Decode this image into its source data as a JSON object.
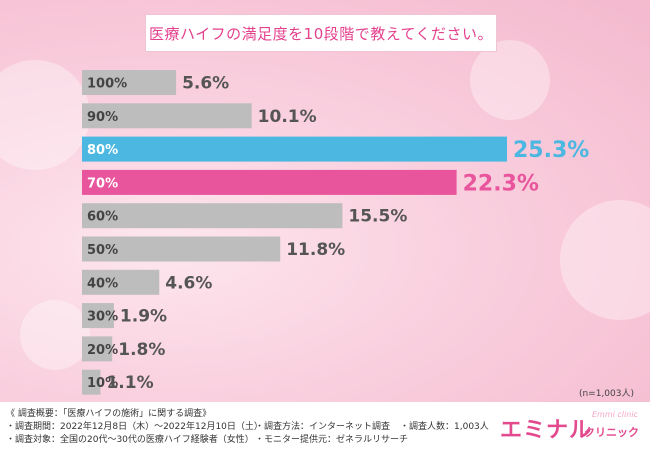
{
  "title": "医療ハイフの満足度を10段階で教えてください。",
  "sample_size": "(n=1,003人)",
  "colors": {
    "default_bar": "#bdbdbd",
    "highlight_1": "#4cb8e2",
    "highlight_2": "#e9559c",
    "title_text": "#e4418d",
    "value_text": "#555555"
  },
  "chart_data": {
    "type": "bar",
    "orientation": "horizontal",
    "categories": [
      "100%",
      "90%",
      "80%",
      "70%",
      "60%",
      "50%",
      "40%",
      "30%",
      "20%",
      "10%"
    ],
    "values": [
      5.6,
      10.1,
      25.3,
      22.3,
      15.5,
      11.8,
      4.6,
      1.9,
      1.8,
      1.1
    ],
    "value_labels": [
      "5.6%",
      "10.1%",
      "25.3%",
      "22.3%",
      "15.5%",
      "11.8%",
      "4.6%",
      "1.9%",
      "1.8%",
      "1.1%"
    ],
    "highlight": {
      "80%": "#4cb8e2",
      "70%": "#e9559c"
    },
    "xlim": [
      0,
      26
    ],
    "grid": false,
    "legend": false
  },
  "footer": {
    "survey_title": "《 調査概要：「医療ハイフの施術」に関する調査》",
    "period": "・調査期間：2022年12月8日（木）～2022年12月10日（土）",
    "method": "・調査方法：インターネット調査",
    "count": "・調査人数：1,003人",
    "target": "・調査対象：全国の20代～30代の医療ハイフ経験者（女性）",
    "provider": "・モニター提供元：ゼネラルリサーチ"
  },
  "logo": {
    "main": "エミナル",
    "sub": "クリニック",
    "script": "Emmi clinic"
  }
}
